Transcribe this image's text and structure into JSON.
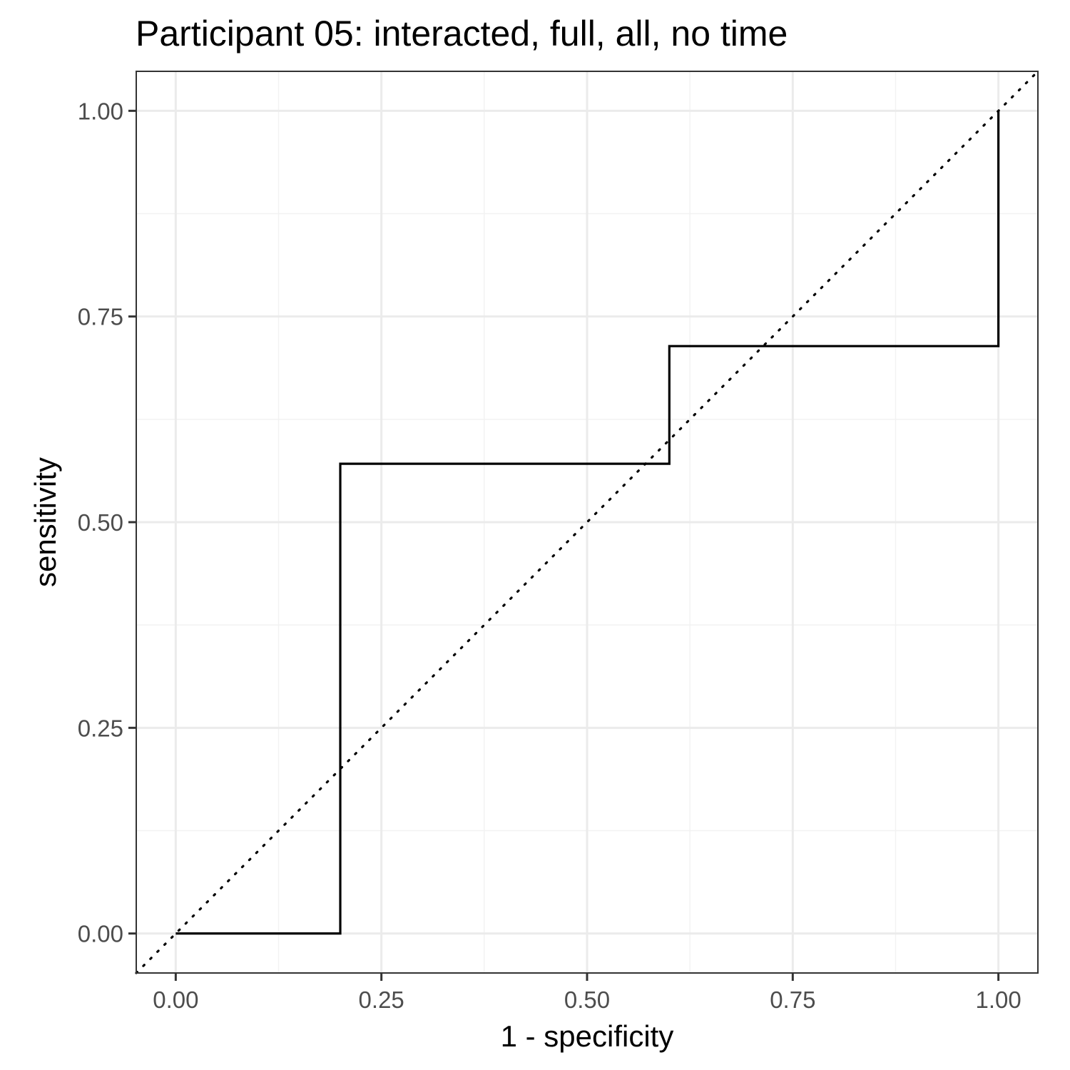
{
  "chart_data": {
    "type": "line",
    "title": "Participant 05: interacted, full, all, no time",
    "xlabel": "1 - specificity",
    "ylabel": "sensitivity",
    "xlim": [
      -0.048,
      1.048
    ],
    "ylim": [
      -0.048,
      1.048
    ],
    "x_ticks": [
      "0.00",
      "0.25",
      "0.50",
      "0.75",
      "1.00"
    ],
    "y_ticks": [
      "0.00",
      "0.25",
      "0.50",
      "0.75",
      "1.00"
    ],
    "grid": true,
    "series": [
      {
        "step": true,
        "color": "#000000",
        "x": [
          0.0,
          0.2,
          0.2,
          0.6,
          0.6,
          1.0,
          1.0
        ],
        "y": [
          0.0,
          0.0,
          0.571,
          0.571,
          0.714,
          0.714,
          1.0
        ]
      }
    ],
    "reference_line": {
      "x": [
        -0.048,
        1.048
      ],
      "y": [
        -0.048,
        1.048
      ],
      "style": "dotted",
      "color": "#000000"
    },
    "colors": {
      "panel_border": "#333333",
      "grid_major": "#ebebeb",
      "grid_minor": "#f2f2f2"
    }
  }
}
